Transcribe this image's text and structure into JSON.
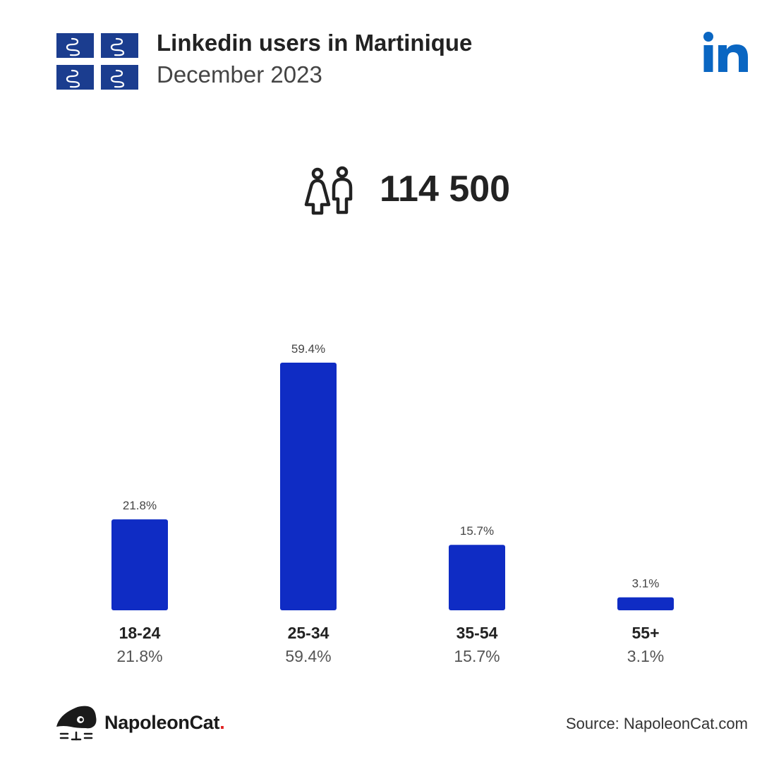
{
  "header": {
    "title": "Linkedin users in Martinique",
    "subtitle": "December 2023"
  },
  "summary": {
    "total_users": "114 500"
  },
  "icons": {
    "flag": "martinique-flag-icon",
    "brand": "linkedin-logo-icon",
    "users": "users-icon",
    "footer": "napoleoncat-logo-icon"
  },
  "colors": {
    "bar": "#0f2cc4",
    "flag_blue": "#1b3d8f",
    "linkedin_blue": "#0a66c2",
    "brand_dot": "#e02020"
  },
  "chart_data": {
    "type": "bar",
    "categories": [
      "18-24",
      "25-34",
      "35-54",
      "55+"
    ],
    "values": [
      21.8,
      59.4,
      15.7,
      3.1
    ],
    "value_labels": [
      "21.8%",
      "59.4%",
      "15.7%",
      "3.1%"
    ],
    "title": "",
    "xlabel": "",
    "ylabel": "",
    "ylim": [
      0,
      59.4
    ],
    "grid": false,
    "legend": "none"
  },
  "footer": {
    "logo_text": "NapoleonCat",
    "logo_dot": ".",
    "source": "Source: NapoleonCat.com"
  }
}
